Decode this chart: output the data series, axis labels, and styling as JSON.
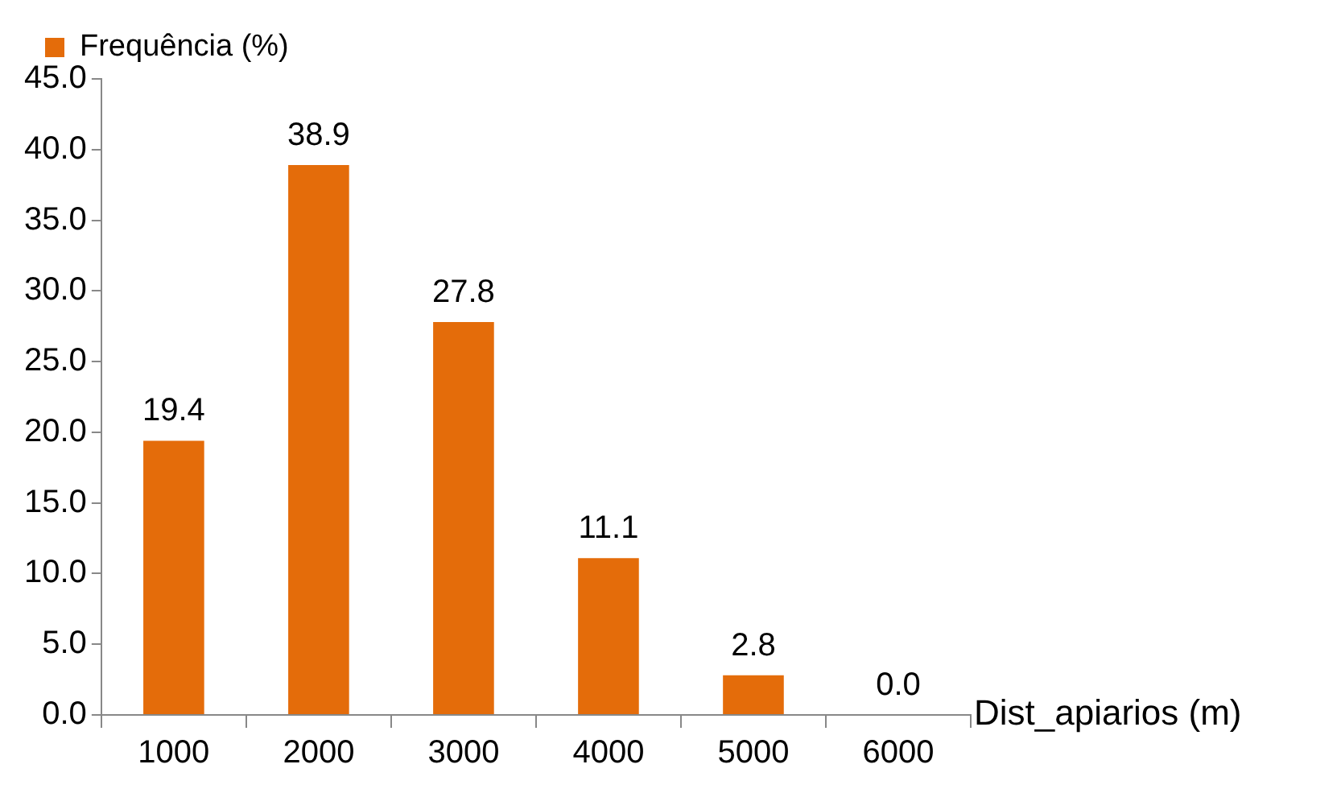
{
  "chart_data": {
    "type": "bar",
    "xlabel": "Dist_apiarios (m)",
    "categories": [
      "1000",
      "2000",
      "3000",
      "4000",
      "5000",
      "6000"
    ],
    "series": [
      {
        "name": "Frequência (%)",
        "color": "#e46c0a",
        "values": [
          19.4,
          38.9,
          27.8,
          11.1,
          2.8,
          0.0
        ],
        "value_labels": [
          "19.4",
          "38.9",
          "27.8",
          "11.1",
          "2.8",
          "0.0"
        ]
      }
    ],
    "ylim": [
      0,
      45
    ],
    "yticks": [
      {
        "value": 0,
        "label": "0.0"
      },
      {
        "value": 5,
        "label": "5.0"
      },
      {
        "value": 10,
        "label": "10.0"
      },
      {
        "value": 15,
        "label": "15.0"
      },
      {
        "value": 20,
        "label": "20.0"
      },
      {
        "value": 25,
        "label": "25.0"
      },
      {
        "value": 30,
        "label": "30.0"
      },
      {
        "value": 35,
        "label": "35.0"
      },
      {
        "value": 40,
        "label": "40.0"
      },
      {
        "value": 45,
        "label": "45.0"
      }
    ],
    "grid": false,
    "legend": "top left"
  }
}
